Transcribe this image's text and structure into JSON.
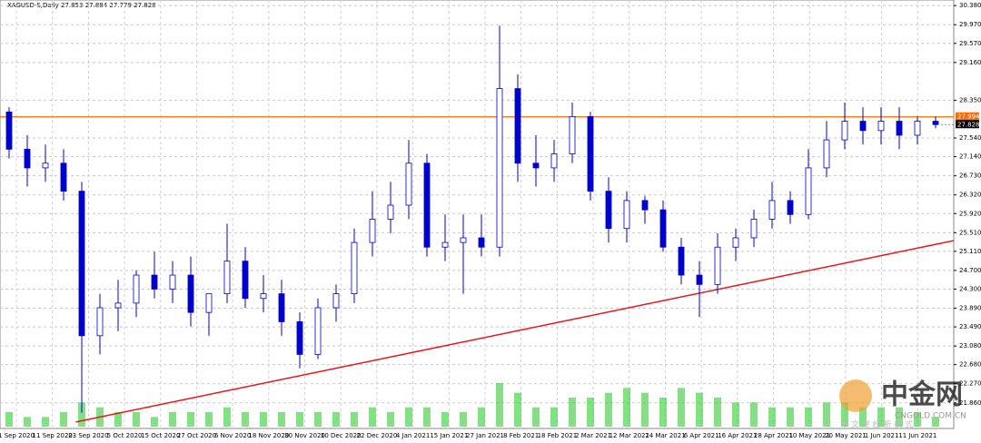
{
  "chart_data": {
    "type": "candlestick",
    "title": "XAGUSD-S,Daily 27.853 27.884 27.779 27.828",
    "open": [
      28.1,
      27.3,
      26.9,
      27.0,
      26.4,
      23.3,
      23.9,
      24.0,
      24.6,
      24.3,
      24.6,
      23.8,
      24.2,
      24.9,
      24.1,
      24.2,
      23.6,
      22.9,
      23.9,
      24.2,
      25.3,
      25.8,
      26.1,
      27.0,
      25.2,
      25.3,
      25.4,
      25.2,
      28.6,
      27.0,
      26.9,
      27.2,
      28.0,
      26.4,
      25.6,
      26.2,
      26.0,
      25.2,
      24.6,
      24.4,
      25.2,
      25.4,
      25.8,
      26.2,
      25.9,
      26.9,
      27.5,
      27.9,
      27.7,
      27.9,
      27.6,
      27.9
    ],
    "high": [
      28.2,
      27.6,
      27.4,
      27.3,
      26.6,
      24.2,
      24.5,
      24.7,
      25.1,
      24.9,
      25.0,
      24.2,
      25.7,
      25.2,
      24.6,
      24.5,
      23.8,
      24.1,
      24.4,
      25.6,
      26.4,
      26.6,
      27.5,
      27.2,
      25.9,
      25.9,
      25.9,
      29.95,
      28.9,
      27.6,
      27.5,
      28.3,
      28.1,
      26.7,
      26.4,
      26.3,
      26.2,
      25.4,
      24.9,
      25.5,
      25.6,
      26.0,
      26.6,
      26.4,
      27.3,
      27.9,
      28.3,
      28.2,
      28.2,
      28.2,
      28.0,
      28.0
    ],
    "low": [
      27.1,
      26.5,
      26.6,
      26.2,
      21.65,
      22.9,
      23.4,
      23.7,
      24.1,
      24.0,
      23.5,
      23.3,
      24.0,
      23.9,
      23.8,
      23.3,
      22.6,
      22.8,
      23.6,
      24.0,
      25.0,
      25.5,
      25.8,
      25.0,
      24.9,
      24.2,
      25.0,
      25.0,
      26.6,
      26.5,
      26.6,
      27.0,
      26.2,
      25.3,
      25.3,
      25.7,
      25.1,
      24.4,
      23.7,
      24.2,
      24.9,
      25.2,
      25.6,
      25.7,
      25.8,
      26.7,
      27.3,
      27.4,
      27.4,
      27.3,
      27.4,
      27.75
    ],
    "close": [
      27.3,
      26.9,
      27.0,
      26.4,
      23.3,
      23.9,
      24.0,
      24.6,
      24.3,
      24.6,
      23.8,
      24.2,
      24.9,
      24.1,
      24.2,
      23.6,
      22.9,
      23.9,
      24.2,
      25.3,
      25.8,
      26.1,
      27.0,
      25.2,
      25.3,
      25.4,
      25.2,
      28.6,
      27.0,
      26.9,
      27.2,
      28.0,
      26.4,
      25.6,
      26.2,
      26.0,
      25.2,
      24.6,
      24.4,
      25.2,
      25.4,
      25.8,
      26.2,
      25.9,
      26.9,
      27.5,
      27.9,
      27.7,
      27.9,
      27.6,
      27.9,
      27.828
    ],
    "volume": [
      3,
      2,
      2,
      3,
      5,
      4,
      3,
      3,
      2,
      3,
      3,
      3,
      4,
      3,
      3,
      3,
      3,
      3,
      3,
      3,
      4,
      3,
      4,
      4,
      3,
      3,
      4,
      9,
      7,
      4,
      4,
      6,
      6,
      7,
      8,
      7,
      6,
      8,
      7,
      6,
      5,
      5,
      4,
      4,
      4,
      5,
      5,
      4,
      4,
      4,
      3,
      2
    ],
    "colors": {
      "bear": "#0000cc",
      "bull": "#ffffff",
      "outline": "#0000cc",
      "volume": "#33cc33",
      "level": "#ff6a00",
      "trend": "#e8141c"
    },
    "categories": [
      "1 Sep 2020",
      "11 Sep 2020",
      "23 Sep 2020",
      "5 Oct 2020",
      "15 Oct 2020",
      "27 Oct 2020",
      "6 Nov 2020",
      "18 Nov 2020",
      "30 Nov 2020",
      "10 Dec 2020",
      "22 Dec 2020",
      "4 Jan 2021",
      "15 Jan 2021",
      "27 Jan 2021",
      "8 Feb 2021",
      "18 Feb 2021",
      "2 Mar 2021",
      "12 Mar 2021",
      "24 Mar 2021",
      "6 Apr 2021",
      "16 Apr 2021",
      "28 Apr 2021",
      "10 May 2021",
      "20 May 2021",
      "1 Jun 2021",
      "11 Jun 2021"
    ],
    "ylim": [
      21.35,
      30.5
    ],
    "yticks": [
      {
        "value": 30.38,
        "label": "30.380"
      },
      {
        "value": 29.97,
        "label": "29.970"
      },
      {
        "value": 29.57,
        "label": "29.570"
      },
      {
        "value": 29.16,
        "label": "29.160"
      },
      {
        "value": 28.35,
        "label": "28.350"
      },
      {
        "value": 27.54,
        "label": "27.540"
      },
      {
        "value": 27.14,
        "label": "27.140"
      },
      {
        "value": 26.73,
        "label": "26.730"
      },
      {
        "value": 26.32,
        "label": "26.320"
      },
      {
        "value": 25.92,
        "label": "25.920"
      },
      {
        "value": 25.51,
        "label": "25.510"
      },
      {
        "value": 25.11,
        "label": "25.110"
      },
      {
        "value": 24.7,
        "label": "24.700"
      },
      {
        "value": 24.3,
        "label": "24.300"
      },
      {
        "value": 23.89,
        "label": "23.890"
      },
      {
        "value": 23.49,
        "label": "23.490"
      },
      {
        "value": 23.08,
        "label": "23.080"
      },
      {
        "value": 22.68,
        "label": "22.680"
      },
      {
        "value": 22.27,
        "label": "22.270"
      },
      {
        "value": 21.86,
        "label": "21.860"
      }
    ],
    "level": {
      "value": 27.994,
      "label": "27.994"
    },
    "last_price": {
      "value": 27.828,
      "label": "27.828"
    },
    "trendline": {
      "start": 21.45,
      "end": 25.34
    },
    "grid": true,
    "watermark": {
      "name": "中金网",
      "site": "CNGOLD.COM.CN",
      "slogan": "中 文 财 经 新 模 式"
    }
  }
}
